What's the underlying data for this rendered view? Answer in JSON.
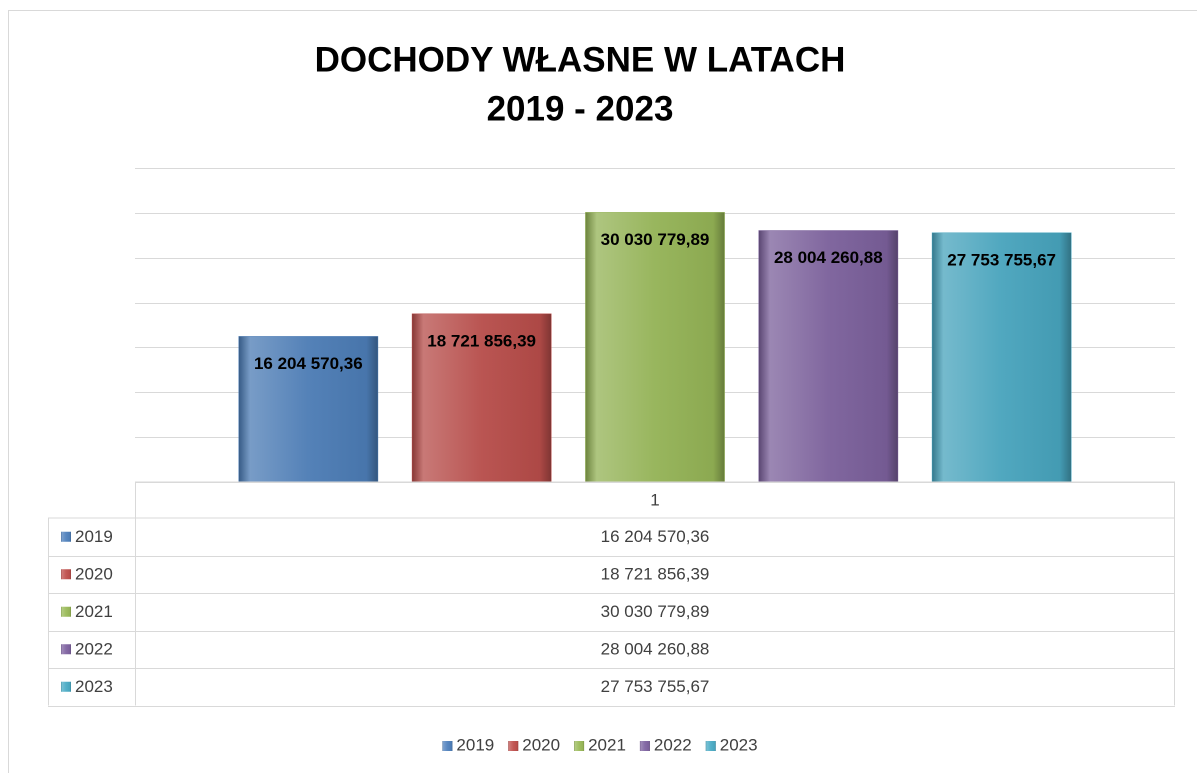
{
  "chart_data": {
    "type": "bar",
    "title": "DOCHODY WŁASNE W LATACH",
    "subtitle": "2019 - 2023",
    "categories": [
      "1"
    ],
    "series": [
      {
        "name": "2019",
        "color": "#4f81bd",
        "values": [
          16204570.36
        ],
        "value_labels": [
          "16 204 570,36"
        ]
      },
      {
        "name": "2020",
        "color": "#c0504d",
        "values": [
          18721856.39
        ],
        "value_labels": [
          "18 721 856,39"
        ]
      },
      {
        "name": "2021",
        "color": "#9bbb59",
        "values": [
          30030779.89
        ],
        "value_labels": [
          "30 030 779,89"
        ]
      },
      {
        "name": "2022",
        "color": "#8064a2",
        "values": [
          28004260.88
        ],
        "value_labels": [
          "28 004 260,88"
        ]
      },
      {
        "name": "2023",
        "color": "#4bacc6",
        "values": [
          27753755.67
        ],
        "value_labels": [
          "27 753 755,67"
        ]
      }
    ],
    "ylim": [
      0,
      35000000
    ],
    "yticks": [
      0,
      5000000,
      10000000,
      15000000,
      20000000,
      25000000,
      30000000,
      35000000
    ],
    "grid": true,
    "legend": "bottom"
  }
}
